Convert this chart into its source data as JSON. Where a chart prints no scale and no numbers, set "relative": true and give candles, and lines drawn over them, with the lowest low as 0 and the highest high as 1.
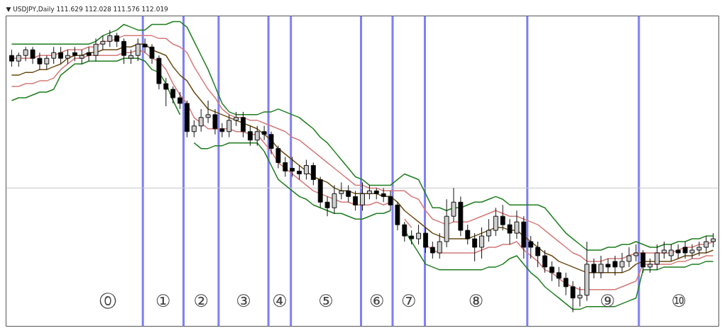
{
  "chart_data": {
    "type": "candlestick",
    "title": "▼ USDJPY,Daily  111.629 112.028 111.576 112.019",
    "relative": true,
    "tick_labels": false,
    "grid": false,
    "categories": [
      null,
      null,
      null,
      null,
      null,
      null,
      null,
      null,
      null,
      null,
      null,
      null,
      null,
      null,
      null,
      null,
      null,
      null,
      null,
      null,
      null,
      null,
      null,
      null,
      null,
      null,
      null,
      null,
      null,
      null,
      null,
      null,
      null,
      null,
      null,
      null,
      null,
      null,
      null,
      null,
      null,
      null,
      null,
      null,
      null,
      null,
      null,
      null,
      null,
      null,
      null,
      null,
      null,
      null,
      null,
      null,
      null,
      null,
      null,
      null,
      null,
      null,
      null,
      null,
      null,
      null,
      null,
      null,
      null,
      null,
      null,
      null,
      null,
      null,
      null,
      null,
      null,
      null,
      null,
      null,
      null,
      null,
      null,
      null,
      null,
      null,
      null,
      null,
      null,
      null,
      null,
      null,
      null,
      null,
      null,
      null,
      null,
      null,
      null,
      null,
      null
    ],
    "ohlc": [
      [
        0.91,
        0.93,
        0.87,
        0.89
      ],
      [
        0.89,
        0.92,
        0.87,
        0.91
      ],
      [
        0.91,
        0.94,
        0.89,
        0.93
      ],
      [
        0.93,
        0.94,
        0.88,
        0.9
      ],
      [
        0.9,
        0.92,
        0.86,
        0.88
      ],
      [
        0.88,
        0.91,
        0.86,
        0.9
      ],
      [
        0.9,
        0.94,
        0.88,
        0.92
      ],
      [
        0.92,
        0.94,
        0.88,
        0.9
      ],
      [
        0.9,
        0.93,
        0.88,
        0.91
      ],
      [
        0.92,
        0.94,
        0.89,
        0.91
      ],
      [
        0.9,
        0.93,
        0.88,
        0.91
      ],
      [
        0.92,
        0.94,
        0.89,
        0.91
      ],
      [
        0.91,
        0.97,
        0.89,
        0.95
      ],
      [
        0.95,
        0.98,
        0.93,
        0.96
      ],
      [
        0.96,
        1.0,
        0.94,
        0.98
      ],
      [
        0.98,
        0.99,
        0.94,
        0.96
      ],
      [
        0.96,
        0.97,
        0.88,
        0.91
      ],
      [
        0.9,
        0.93,
        0.88,
        0.91
      ],
      [
        0.91,
        0.97,
        0.89,
        0.95
      ],
      [
        0.95,
        0.97,
        0.92,
        0.94
      ],
      [
        0.94,
        0.95,
        0.88,
        0.9
      ],
      [
        0.9,
        0.91,
        0.79,
        0.81
      ],
      [
        0.81,
        0.83,
        0.73,
        0.79
      ],
      [
        0.79,
        0.8,
        0.74,
        0.76
      ],
      [
        0.76,
        0.78,
        0.72,
        0.74
      ],
      [
        0.74,
        0.75,
        0.62,
        0.64
      ],
      [
        0.64,
        0.68,
        0.62,
        0.66
      ],
      [
        0.66,
        0.72,
        0.64,
        0.69
      ],
      [
        0.69,
        0.75,
        0.67,
        0.7
      ],
      [
        0.7,
        0.72,
        0.63,
        0.65
      ],
      [
        0.65,
        0.67,
        0.62,
        0.64
      ],
      [
        0.64,
        0.7,
        0.62,
        0.68
      ],
      [
        0.68,
        0.71,
        0.66,
        0.69
      ],
      [
        0.69,
        0.71,
        0.62,
        0.64
      ],
      [
        0.64,
        0.66,
        0.59,
        0.61
      ],
      [
        0.61,
        0.66,
        0.59,
        0.64
      ],
      [
        0.64,
        0.66,
        0.61,
        0.63
      ],
      [
        0.63,
        0.64,
        0.56,
        0.58
      ],
      [
        0.58,
        0.59,
        0.51,
        0.53
      ],
      [
        0.53,
        0.55,
        0.48,
        0.5
      ],
      [
        0.51,
        0.55,
        0.48,
        0.5
      ],
      [
        0.5,
        0.52,
        0.47,
        0.49
      ],
      [
        0.49,
        0.54,
        0.47,
        0.52
      ],
      [
        0.52,
        0.53,
        0.45,
        0.47
      ],
      [
        0.47,
        0.48,
        0.37,
        0.39
      ],
      [
        0.39,
        0.41,
        0.34,
        0.37
      ],
      [
        0.37,
        0.45,
        0.35,
        0.42
      ],
      [
        0.42,
        0.46,
        0.4,
        0.43
      ],
      [
        0.43,
        0.45,
        0.39,
        0.41
      ],
      [
        0.41,
        0.43,
        0.36,
        0.38
      ],
      [
        0.38,
        0.46,
        0.36,
        0.42
      ],
      [
        0.42,
        0.45,
        0.4,
        0.43
      ],
      [
        0.43,
        0.44,
        0.4,
        0.42
      ],
      [
        0.42,
        0.44,
        0.39,
        0.41
      ],
      [
        0.41,
        0.43,
        0.36,
        0.38
      ],
      [
        0.38,
        0.39,
        0.29,
        0.31
      ],
      [
        0.31,
        0.32,
        0.25,
        0.27
      ],
      [
        0.27,
        0.29,
        0.24,
        0.26
      ],
      [
        0.26,
        0.31,
        0.24,
        0.28
      ],
      [
        0.28,
        0.3,
        0.21,
        0.23
      ],
      [
        0.23,
        0.25,
        0.19,
        0.21
      ],
      [
        0.21,
        0.28,
        0.19,
        0.25
      ],
      [
        0.25,
        0.4,
        0.23,
        0.34
      ],
      [
        0.34,
        0.44,
        0.32,
        0.39
      ],
      [
        0.39,
        0.41,
        0.27,
        0.29
      ],
      [
        0.29,
        0.31,
        0.24,
        0.26
      ],
      [
        0.26,
        0.28,
        0.18,
        0.23
      ],
      [
        0.23,
        0.3,
        0.19,
        0.27
      ],
      [
        0.27,
        0.33,
        0.25,
        0.29
      ],
      [
        0.29,
        0.37,
        0.27,
        0.34
      ],
      [
        0.34,
        0.38,
        0.29,
        0.31
      ],
      [
        0.31,
        0.33,
        0.24,
        0.28
      ],
      [
        0.28,
        0.36,
        0.26,
        0.32
      ],
      [
        0.32,
        0.34,
        0.19,
        0.23
      ],
      [
        0.25,
        0.27,
        0.19,
        0.23
      ],
      [
        0.23,
        0.25,
        0.16,
        0.2
      ],
      [
        0.2,
        0.22,
        0.14,
        0.16
      ],
      [
        0.16,
        0.18,
        0.11,
        0.14
      ],
      [
        0.14,
        0.16,
        0.09,
        0.12
      ],
      [
        0.12,
        0.14,
        0.06,
        0.09
      ],
      [
        0.09,
        0.11,
        0.0,
        0.05
      ],
      [
        0.05,
        0.09,
        0.02,
        0.06
      ],
      [
        0.06,
        0.25,
        0.04,
        0.17
      ],
      [
        0.17,
        0.19,
        0.12,
        0.14
      ],
      [
        0.14,
        0.2,
        0.12,
        0.17
      ],
      [
        0.17,
        0.19,
        0.14,
        0.16
      ],
      [
        0.18,
        0.2,
        0.13,
        0.16
      ],
      [
        0.16,
        0.21,
        0.14,
        0.18
      ],
      [
        0.18,
        0.23,
        0.16,
        0.2
      ],
      [
        0.2,
        0.24,
        0.18,
        0.21
      ],
      [
        0.21,
        0.22,
        0.14,
        0.16
      ],
      [
        0.16,
        0.19,
        0.14,
        0.17
      ],
      [
        0.17,
        0.24,
        0.15,
        0.21
      ],
      [
        0.21,
        0.25,
        0.19,
        0.22
      ],
      [
        0.2,
        0.24,
        0.18,
        0.22
      ],
      [
        0.22,
        0.24,
        0.19,
        0.21
      ],
      [
        0.23,
        0.25,
        0.19,
        0.21
      ],
      [
        0.21,
        0.24,
        0.19,
        0.22
      ],
      [
        0.22,
        0.25,
        0.2,
        0.23
      ],
      [
        0.23,
        0.27,
        0.21,
        0.25
      ],
      [
        0.25,
        0.28,
        0.23,
        0.26
      ]
    ],
    "series": [
      {
        "type": "line",
        "color": "#1e7d1e",
        "values": [
          0.95,
          0.95,
          0.95,
          0.95,
          0.95,
          0.95,
          0.95,
          0.95,
          0.95,
          0.95,
          0.95,
          0.95,
          0.96,
          0.98,
          0.99,
          1.0,
          1.02,
          1.01,
          1.0,
          1.0,
          1.02,
          1.02,
          1.02,
          1.03,
          1.03,
          1.01,
          0.96,
          0.91,
          0.86,
          0.8,
          0.74,
          0.71,
          0.7,
          0.7,
          0.7,
          0.7,
          0.71,
          0.71,
          0.72,
          0.71,
          0.7,
          0.69,
          0.67,
          0.65,
          0.62,
          0.6,
          0.57,
          0.54,
          0.51,
          0.48,
          0.47,
          0.45,
          0.45,
          0.45,
          0.45,
          0.47,
          0.49,
          0.48,
          0.47,
          0.42,
          0.37,
          0.37,
          0.36,
          0.37,
          0.37,
          0.38,
          0.39,
          0.39,
          0.4,
          0.41,
          0.4,
          0.38,
          0.38,
          0.38,
          0.38,
          0.38,
          0.37,
          0.34,
          0.31,
          0.28,
          0.26,
          0.24,
          0.22,
          0.22,
          0.22,
          0.23,
          0.23,
          0.24,
          0.24,
          0.25,
          0.24,
          0.23,
          0.23,
          0.24,
          0.24,
          0.25,
          0.25,
          0.26,
          0.26,
          0.27,
          0.27
        ]
      },
      {
        "type": "line",
        "color": "#1e7d1e",
        "values": [
          0.75,
          0.76,
          0.76,
          0.77,
          0.78,
          0.78,
          0.79,
          0.84,
          0.86,
          0.88,
          0.88,
          0.89,
          0.89,
          0.89,
          0.89,
          0.89,
          0.9,
          0.9,
          0.9,
          0.89,
          0.86,
          0.85,
          0.81,
          0.75,
          0.7,
          null,
          0.6,
          0.58,
          0.58,
          0.59,
          0.59,
          0.6,
          0.6,
          0.6,
          0.6,
          0.6,
          0.57,
          0.52,
          0.47,
          0.45,
          0.43,
          0.41,
          0.4,
          0.38,
          0.37,
          0.36,
          0.35,
          0.35,
          0.34,
          0.33,
          0.33,
          0.34,
          0.35,
          0.35,
          0.36,
          null,
          0.29,
          0.25,
          0.21,
          0.17,
          0.16,
          0.15,
          0.15,
          0.15,
          0.15,
          0.15,
          0.15,
          0.15,
          0.16,
          0.16,
          0.17,
          0.19,
          0.2,
          0.17,
          0.14,
          0.12,
          0.09,
          0.07,
          0.05,
          0.03,
          0.01,
          0.01,
          0.02,
          0.02,
          0.02,
          0.02,
          0.02,
          0.03,
          0.04,
          0.05,
          0.15,
          0.15,
          0.15,
          0.16,
          0.16,
          0.16,
          0.16,
          0.17,
          0.17,
          0.18,
          0.18
        ]
      },
      {
        "type": "line",
        "color": "#6b4a12",
        "values": [
          0.84,
          0.84,
          0.85,
          0.85,
          0.86,
          0.86,
          0.87,
          0.88,
          0.9,
          0.91,
          0.91,
          0.92,
          0.92,
          0.93,
          0.93,
          0.93,
          0.94,
          0.94,
          0.95,
          0.95,
          0.93,
          0.92,
          0.91,
          0.87,
          0.84,
          0.82,
          0.78,
          0.75,
          0.72,
          0.71,
          0.7,
          0.69,
          0.68,
          0.67,
          0.66,
          0.65,
          0.63,
          0.61,
          0.58,
          0.56,
          0.54,
          0.52,
          0.5,
          0.48,
          0.47,
          0.46,
          0.44,
          0.43,
          0.43,
          0.42,
          0.42,
          0.42,
          0.42,
          0.41,
          0.41,
          0.39,
          0.36,
          0.34,
          0.32,
          0.3,
          0.28,
          0.27,
          0.26,
          0.26,
          0.26,
          0.26,
          0.27,
          0.28,
          0.29,
          0.3,
          0.3,
          0.29,
          0.29,
          0.27,
          0.25,
          0.23,
          0.21,
          0.2,
          0.18,
          0.17,
          0.16,
          0.15,
          0.14,
          0.14,
          0.14,
          0.14,
          0.14,
          0.14,
          0.15,
          0.17,
          0.18,
          0.18,
          0.18,
          0.18,
          0.18,
          0.19,
          0.2,
          0.2,
          0.21,
          0.21,
          0.22
        ]
      },
      {
        "type": "line",
        "color": "#d47a7a",
        "values": [
          0.9,
          0.9,
          0.9,
          0.9,
          0.91,
          0.91,
          0.91,
          0.92,
          0.93,
          0.93,
          0.93,
          0.94,
          0.94,
          0.96,
          0.96,
          0.97,
          0.98,
          0.98,
          0.98,
          0.98,
          0.98,
          0.97,
          0.97,
          0.95,
          0.94,
          0.92,
          0.87,
          0.83,
          0.79,
          0.76,
          0.72,
          0.7,
          0.69,
          0.69,
          0.68,
          0.68,
          0.67,
          0.66,
          0.65,
          0.64,
          0.62,
          0.61,
          0.59,
          0.57,
          0.55,
          0.53,
          0.51,
          0.49,
          0.47,
          0.45,
          0.45,
          0.44,
          0.44,
          0.43,
          0.43,
          0.43,
          0.43,
          0.41,
          0.4,
          0.36,
          0.33,
          0.32,
          0.31,
          0.32,
          0.32,
          0.32,
          0.33,
          0.34,
          0.35,
          0.36,
          0.35,
          0.34,
          0.34,
          0.33,
          0.32,
          0.31,
          0.29,
          0.27,
          0.25,
          0.23,
          0.21,
          0.2,
          0.18,
          0.18,
          0.18,
          0.19,
          0.19,
          0.19,
          0.2,
          0.21,
          0.21,
          0.21,
          0.21,
          0.21,
          0.21,
          0.22,
          0.23,
          0.23,
          0.24,
          0.24,
          0.25
        ]
      },
      {
        "type": "line",
        "color": "#d47a7a",
        "values": [
          0.8,
          0.8,
          0.81,
          0.81,
          0.82,
          0.82,
          0.83,
          0.86,
          0.88,
          0.9,
          0.9,
          0.91,
          0.91,
          0.91,
          0.91,
          0.91,
          0.92,
          0.92,
          0.93,
          0.92,
          0.9,
          0.89,
          0.86,
          0.81,
          0.77,
          0.74,
          0.69,
          0.67,
          0.65,
          0.65,
          0.65,
          0.65,
          0.64,
          0.64,
          0.63,
          0.63,
          0.6,
          0.57,
          0.53,
          0.51,
          0.49,
          0.47,
          0.45,
          0.43,
          0.42,
          0.41,
          0.4,
          0.39,
          0.39,
          0.38,
          0.38,
          0.38,
          0.39,
          0.38,
          0.39,
          null,
          0.33,
          0.3,
          null,
          0.24,
          0.22,
          0.21,
          0.21,
          0.21,
          0.21,
          0.21,
          0.21,
          0.22,
          0.23,
          0.23,
          0.24,
          0.24,
          0.25,
          0.22,
          0.2,
          0.18,
          0.15,
          0.14,
          0.12,
          0.1,
          0.09,
          0.08,
          0.08,
          0.08,
          0.08,
          0.08,
          0.08,
          0.09,
          0.1,
          0.11,
          0.17,
          0.17,
          0.17,
          0.17,
          0.17,
          0.18,
          0.18,
          0.19,
          0.19,
          0.2,
          0.2
        ]
      }
    ],
    "ref_lines": [
      {
        "axis": "y",
        "value": 0.44,
        "color": "#c8c8c8"
      }
    ],
    "annotations": [
      "⓪",
      "①",
      "②",
      "③",
      "④",
      "⑤",
      "⑥",
      "⑦",
      "⑧",
      "⑨",
      "⑩"
    ]
  }
}
